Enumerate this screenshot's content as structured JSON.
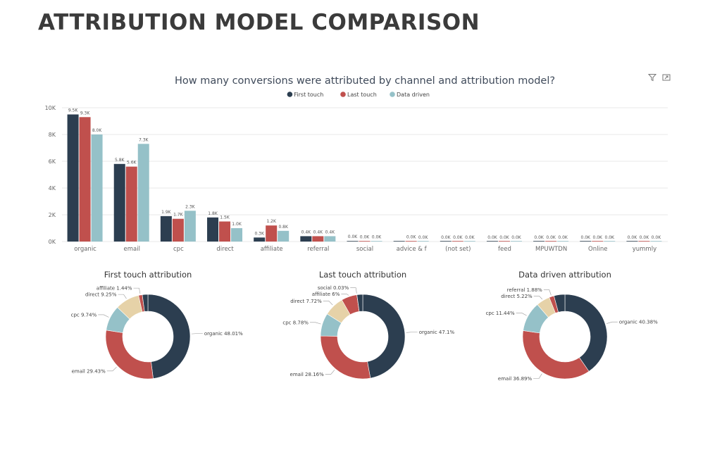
{
  "page": {
    "title": "ATTRIBUTION MODEL COMPARISON"
  },
  "toolbar": {
    "icons": [
      "filter-icon",
      "focus-mode-icon"
    ]
  },
  "colors": {
    "first": "#2c3e50",
    "last": "#c0504d",
    "data": "#95c1c8",
    "beige": "#e6d2a8",
    "grid": "#e8e8e8",
    "axis": "#666666"
  },
  "chart_data": [
    {
      "type": "bar",
      "title": "How many conversions were attributed by channel and attribution model?",
      "legend_position": "top-center",
      "grid": true,
      "categories": [
        "organic",
        "email",
        "cpc",
        "direct",
        "affiliate",
        "referral",
        "social",
        "advice & f",
        "(not set)",
        "feed",
        "MPUWTDN",
        "Online",
        "yummly"
      ],
      "ylim": [
        0,
        10000
      ],
      "yticks": [
        "0K",
        "2K",
        "4K",
        "6K",
        "8K",
        "10K"
      ],
      "series": [
        {
          "name": "First touch",
          "color": "#2c3e50",
          "values": [
            9500,
            5800,
            1900,
            1800,
            300,
            400,
            40,
            0,
            0,
            0,
            0,
            0,
            0
          ],
          "labels": [
            "9.5K",
            "5.8K",
            "1.9K",
            "1.8K",
            "0.3K",
            "0.4K",
            "0.0K",
            "",
            "0.0K",
            "0.0K",
            "0.0K",
            "0.0K",
            "0.0K"
          ]
        },
        {
          "name": "Last touch",
          "color": "#c0504d",
          "values": [
            9300,
            5600,
            1700,
            1500,
            1200,
            400,
            30,
            20,
            0,
            0,
            0,
            0,
            0
          ],
          "labels": [
            "9.3K",
            "5.6K",
            "1.7K",
            "1.5K",
            "1.2K",
            "0.4K",
            "0.0K",
            "0.0K",
            "0.0K",
            "0.0K",
            "0.0K",
            "0.0K",
            "0.0K"
          ]
        },
        {
          "name": "Data driven",
          "color": "#95c1c8",
          "values": [
            8000,
            7300,
            2300,
            1000,
            800,
            400,
            20,
            10,
            0,
            0,
            0,
            0,
            0
          ],
          "labels": [
            "8.0K",
            "7.3K",
            "2.3K",
            "1.0K",
            "0.8K",
            "0.4K",
            "0.0K",
            "0.0K",
            "0.0K",
            "0.0K",
            "0.0K",
            "0.0K",
            "0.0K"
          ]
        }
      ]
    },
    {
      "type": "pie",
      "title": "First touch attribution",
      "slices": [
        {
          "label": "organic 48.01%",
          "value": 48.01,
          "color": "#2c3e50"
        },
        {
          "label": "email 29.43%",
          "value": 29.43,
          "color": "#c0504d"
        },
        {
          "label": "cpc 9.74%",
          "value": 9.74,
          "color": "#95c1c8"
        },
        {
          "label": "direct 9.25%",
          "value": 9.25,
          "color": "#e6d2a8"
        },
        {
          "label": "affiliate 1.44%",
          "value": 1.44,
          "color": "#c0504d"
        },
        {
          "label": "",
          "value": 2.13,
          "color": "#2c3e50"
        }
      ]
    },
    {
      "type": "pie",
      "title": "Last touch attribution",
      "slices": [
        {
          "label": "organic 47.1%",
          "value": 47.1,
          "color": "#2c3e50"
        },
        {
          "label": "email 28.16%",
          "value": 28.16,
          "color": "#c0504d"
        },
        {
          "label": "cpc 8.78%",
          "value": 8.78,
          "color": "#95c1c8"
        },
        {
          "label": "direct 7.72%",
          "value": 7.72,
          "color": "#e6d2a8"
        },
        {
          "label": "affiliate 6%",
          "value": 6.0,
          "color": "#c0504d"
        },
        {
          "label": "social 0.03%",
          "value": 0.03,
          "color": "#95c1c8"
        },
        {
          "label": "",
          "value": 2.21,
          "color": "#2c3e50"
        }
      ]
    },
    {
      "type": "pie",
      "title": "Data driven attribution",
      "slices": [
        {
          "label": "organic 40.38%",
          "value": 40.38,
          "color": "#2c3e50"
        },
        {
          "label": "email 36.89%",
          "value": 36.89,
          "color": "#c0504d"
        },
        {
          "label": "cpc 11.44%",
          "value": 11.44,
          "color": "#95c1c8"
        },
        {
          "label": "direct 5.22%",
          "value": 5.22,
          "color": "#e6d2a8"
        },
        {
          "label": "referral 1.88%",
          "value": 1.88,
          "color": "#c0504d"
        },
        {
          "label": "",
          "value": 4.19,
          "color": "#2c3e50"
        }
      ]
    }
  ]
}
